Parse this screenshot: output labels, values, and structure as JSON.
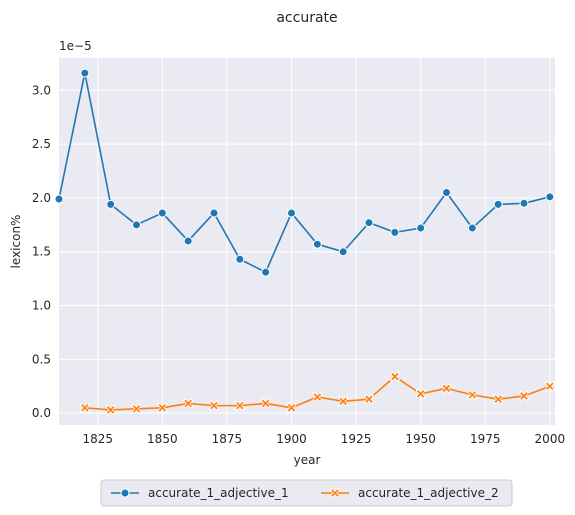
{
  "chart_data": {
    "type": "line",
    "title": "accurate",
    "xlabel": "year",
    "ylabel": "lexicon%",
    "y_exponent_label": "1e−5",
    "xlim": [
      1810,
      2002
    ],
    "ylim": [
      -0.11,
      3.3
    ],
    "x_ticks": [
      1825,
      1850,
      1875,
      1900,
      1925,
      1950,
      1975,
      2000
    ],
    "y_ticks": [
      0.0,
      0.5,
      1.0,
      1.5,
      2.0,
      2.5,
      3.0
    ],
    "y_tick_labels": [
      "0.0",
      "0.5",
      "1.0",
      "1.5",
      "2.0",
      "2.5",
      "3.0"
    ],
    "grid": true,
    "legend_placement": "bottom-center",
    "series": [
      {
        "name": "accurate_1_adjective_1",
        "color": "#1f77b4",
        "marker": "circle",
        "x": [
          1810,
          1820,
          1830,
          1840,
          1850,
          1860,
          1870,
          1880,
          1890,
          1900,
          1910,
          1920,
          1930,
          1940,
          1950,
          1960,
          1970,
          1980,
          1990,
          2000
        ],
        "y": [
          1.99,
          3.16,
          1.94,
          1.75,
          1.86,
          1.6,
          1.86,
          1.43,
          1.31,
          1.86,
          1.57,
          1.5,
          1.77,
          1.68,
          1.72,
          2.05,
          1.72,
          1.94,
          1.95,
          2.01
        ]
      },
      {
        "name": "accurate_1_adjective_2",
        "color": "#ff7f0e",
        "marker": "x",
        "x": [
          1820,
          1830,
          1840,
          1850,
          1860,
          1870,
          1880,
          1890,
          1900,
          1910,
          1920,
          1930,
          1940,
          1950,
          1960,
          1970,
          1980,
          1990,
          2000
        ],
        "y": [
          0.05,
          0.03,
          0.04,
          0.05,
          0.09,
          0.07,
          0.07,
          0.09,
          0.05,
          0.15,
          0.11,
          0.13,
          0.34,
          0.18,
          0.23,
          0.17,
          0.13,
          0.16,
          0.25
        ]
      }
    ]
  }
}
